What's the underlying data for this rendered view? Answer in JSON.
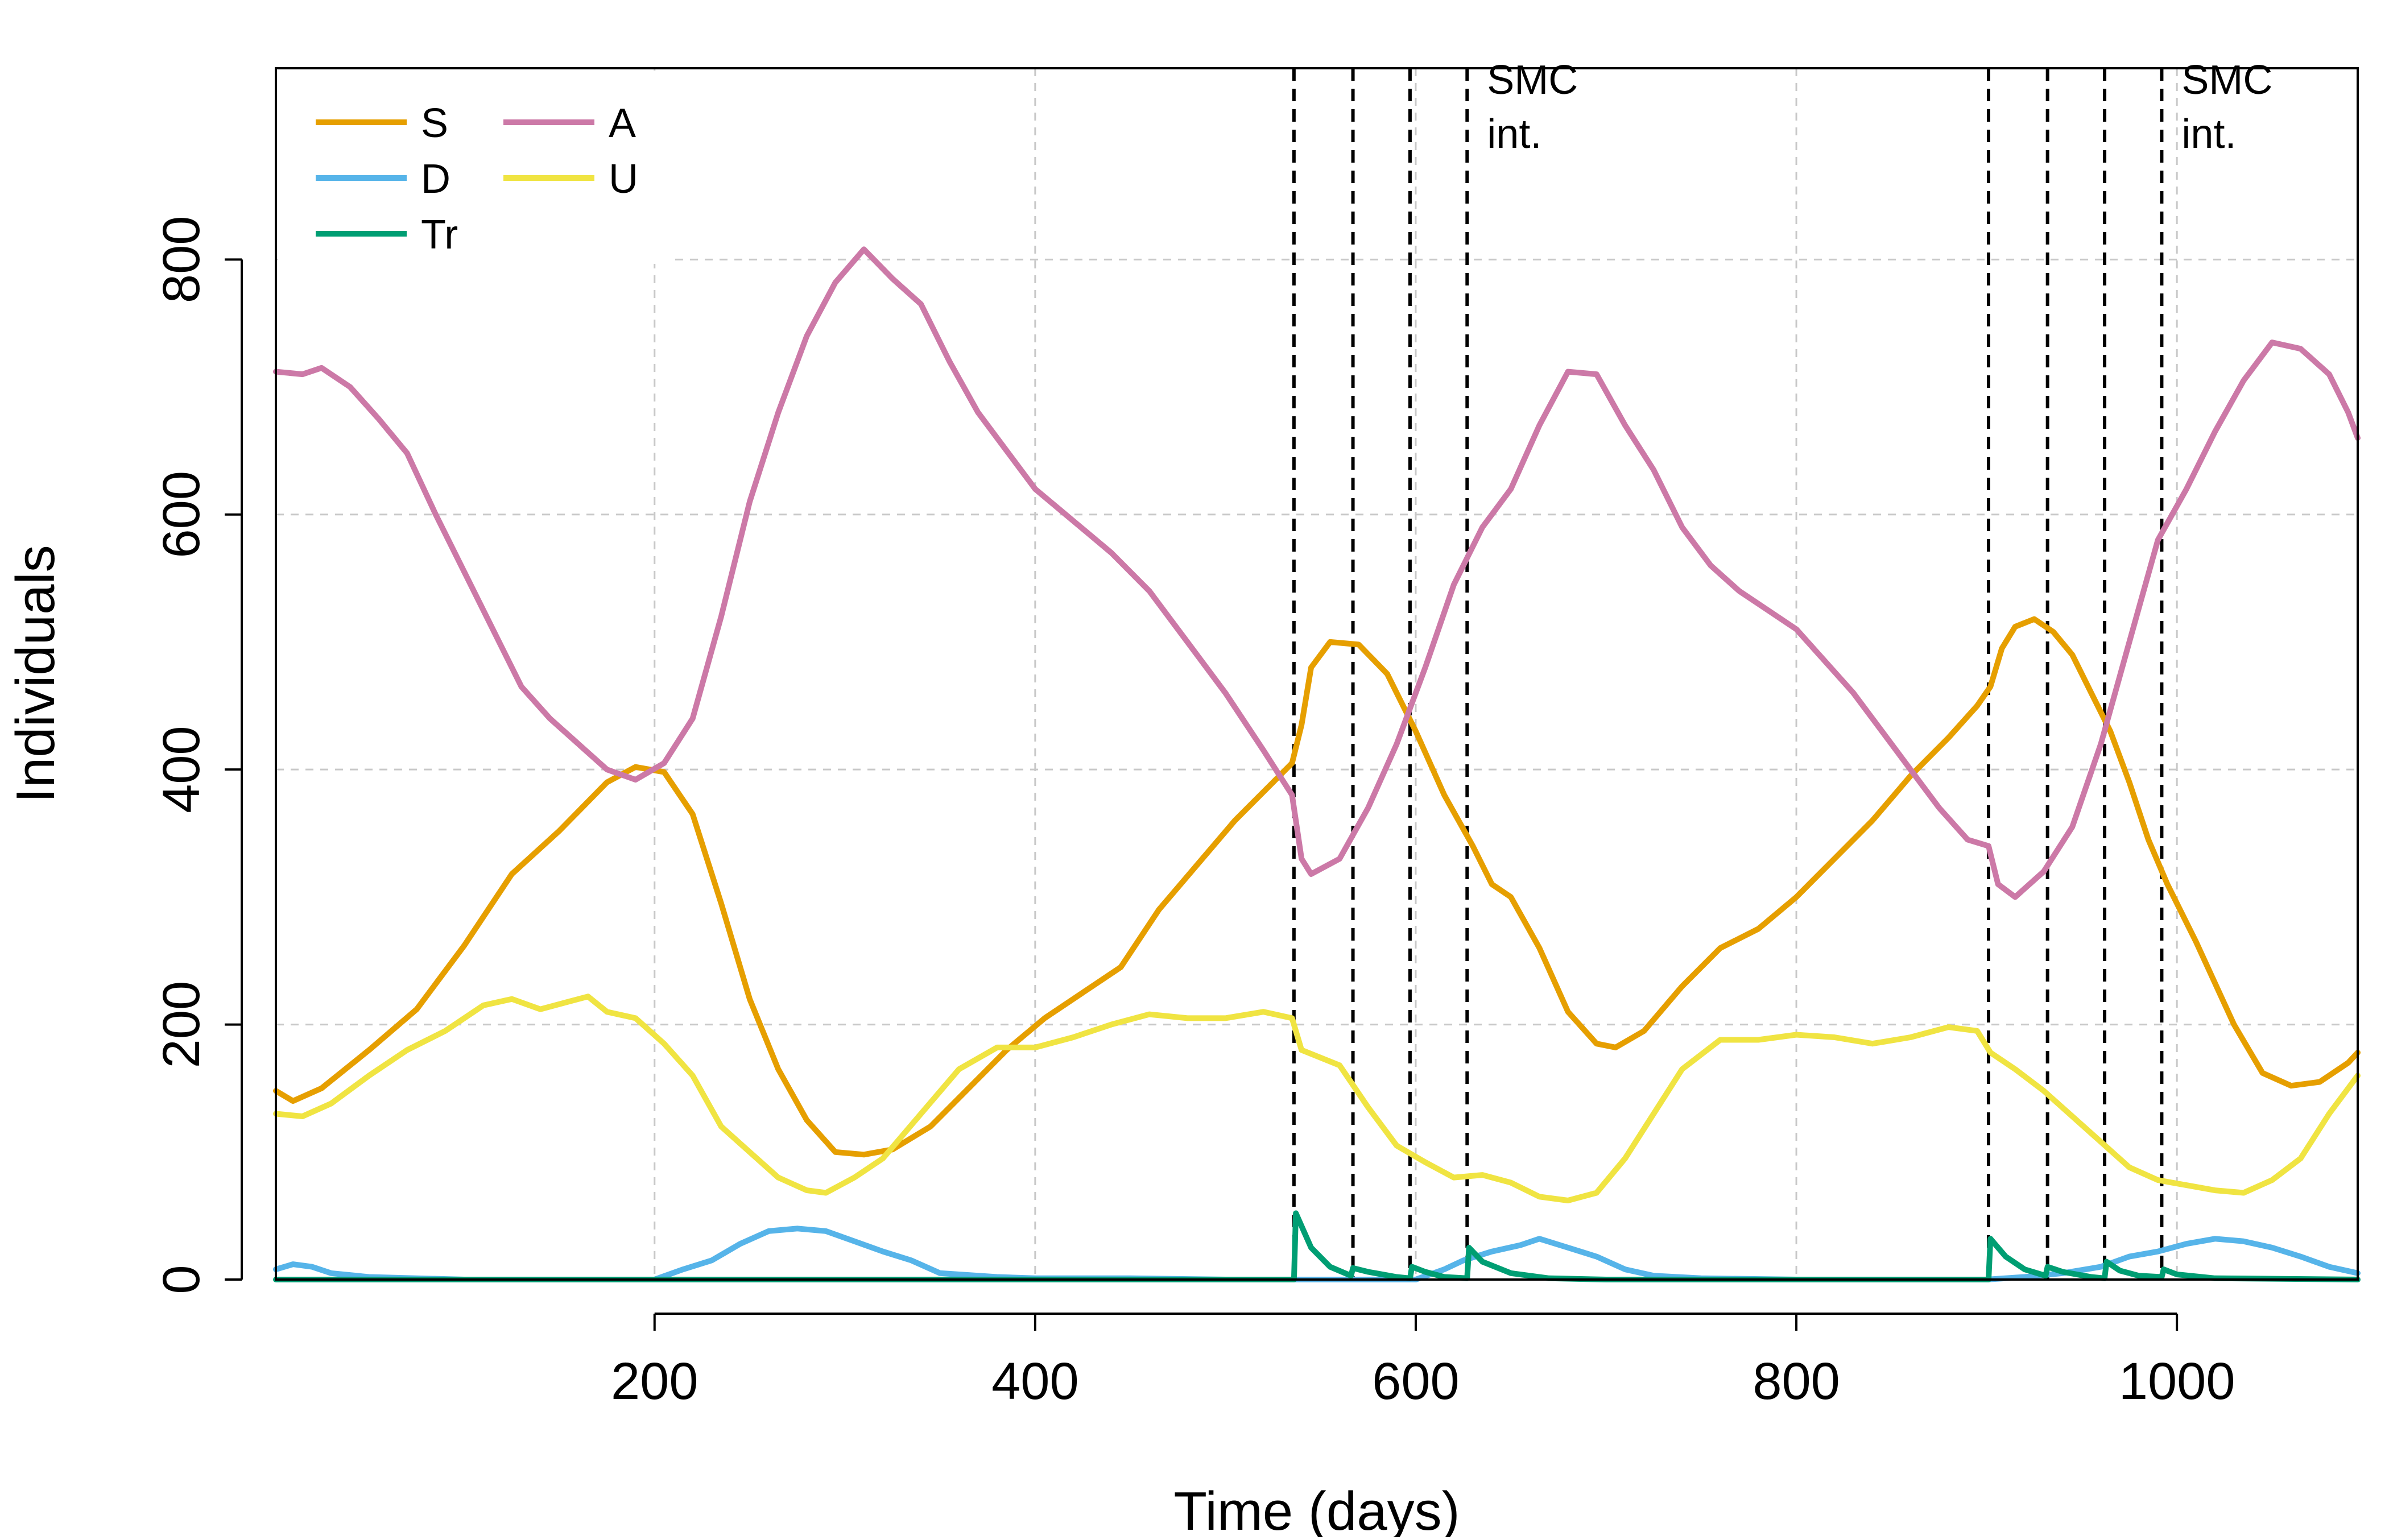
{
  "chart_data": {
    "type": "line",
    "title": "",
    "xlabel": "Time (days)",
    "ylabel": "Individuals",
    "xlim": [
      1,
      1095
    ],
    "ylim": [
      0,
      950
    ],
    "xticks": [
      200,
      400,
      600,
      800,
      1000
    ],
    "yticks": [
      0,
      200,
      400,
      600,
      800
    ],
    "grid": true,
    "legend": {
      "placement": "top-left",
      "columns": 2
    },
    "series": [
      {
        "name": "S",
        "color": "#E69F00",
        "points": [
          [
            1,
            148
          ],
          [
            10,
            140
          ],
          [
            25,
            150
          ],
          [
            50,
            180
          ],
          [
            75,
            212
          ],
          [
            100,
            262
          ],
          [
            125,
            318
          ],
          [
            150,
            352
          ],
          [
            175,
            390
          ],
          [
            190,
            402
          ],
          [
            205,
            398
          ],
          [
            220,
            365
          ],
          [
            235,
            295
          ],
          [
            250,
            220
          ],
          [
            265,
            165
          ],
          [
            280,
            125
          ],
          [
            295,
            100
          ],
          [
            310,
            98
          ],
          [
            325,
            102
          ],
          [
            345,
            120
          ],
          [
            365,
            150
          ],
          [
            385,
            180
          ],
          [
            405,
            205
          ],
          [
            425,
            225
          ],
          [
            445,
            245
          ],
          [
            465,
            290
          ],
          [
            485,
            325
          ],
          [
            505,
            360
          ],
          [
            525,
            390
          ],
          [
            535,
            405
          ],
          [
            540,
            435
          ],
          [
            545,
            480
          ],
          [
            555,
            500
          ],
          [
            570,
            498
          ],
          [
            585,
            475
          ],
          [
            600,
            430
          ],
          [
            615,
            380
          ],
          [
            630,
            340
          ],
          [
            640,
            310
          ],
          [
            650,
            300
          ],
          [
            665,
            260
          ],
          [
            680,
            210
          ],
          [
            695,
            185
          ],
          [
            705,
            182
          ],
          [
            720,
            195
          ],
          [
            740,
            230
          ],
          [
            760,
            260
          ],
          [
            780,
            275
          ],
          [
            800,
            300
          ],
          [
            820,
            330
          ],
          [
            840,
            360
          ],
          [
            860,
            395
          ],
          [
            880,
            425
          ],
          [
            895,
            450
          ],
          [
            902,
            465
          ],
          [
            908,
            495
          ],
          [
            915,
            512
          ],
          [
            925,
            518
          ],
          [
            935,
            508
          ],
          [
            945,
            490
          ],
          [
            955,
            460
          ],
          [
            965,
            430
          ],
          [
            975,
            390
          ],
          [
            985,
            345
          ],
          [
            995,
            310
          ],
          [
            1010,
            265
          ],
          [
            1030,
            200
          ],
          [
            1045,
            162
          ],
          [
            1060,
            152
          ],
          [
            1075,
            155
          ],
          [
            1090,
            170
          ],
          [
            1095,
            178
          ]
        ]
      },
      {
        "name": "D",
        "color": "#56B4E9",
        "points": [
          [
            1,
            8
          ],
          [
            10,
            12
          ],
          [
            20,
            10
          ],
          [
            30,
            5
          ],
          [
            50,
            2
          ],
          [
            100,
            0
          ],
          [
            150,
            0
          ],
          [
            200,
            0
          ],
          [
            215,
            8
          ],
          [
            230,
            15
          ],
          [
            245,
            28
          ],
          [
            260,
            38
          ],
          [
            275,
            40
          ],
          [
            290,
            38
          ],
          [
            305,
            30
          ],
          [
            320,
            22
          ],
          [
            335,
            15
          ],
          [
            350,
            5
          ],
          [
            380,
            2
          ],
          [
            400,
            1
          ],
          [
            450,
            1
          ],
          [
            500,
            0
          ],
          [
            535,
            0
          ],
          [
            560,
            0
          ],
          [
            580,
            0
          ],
          [
            600,
            0
          ],
          [
            615,
            8
          ],
          [
            625,
            15
          ],
          [
            640,
            22
          ],
          [
            655,
            27
          ],
          [
            665,
            32
          ],
          [
            680,
            25
          ],
          [
            695,
            18
          ],
          [
            710,
            8
          ],
          [
            725,
            3
          ],
          [
            750,
            1
          ],
          [
            800,
            0
          ],
          [
            850,
            0
          ],
          [
            900,
            0
          ],
          [
            920,
            2
          ],
          [
            940,
            5
          ],
          [
            960,
            10
          ],
          [
            975,
            18
          ],
          [
            990,
            22
          ],
          [
            1005,
            28
          ],
          [
            1020,
            32
          ],
          [
            1035,
            30
          ],
          [
            1050,
            25
          ],
          [
            1065,
            18
          ],
          [
            1080,
            10
          ],
          [
            1095,
            5
          ]
        ]
      },
      {
        "name": "Tr",
        "color": "#009E73",
        "points": [
          [
            1,
            0
          ],
          [
            200,
            0
          ],
          [
            400,
            0
          ],
          [
            530,
            0
          ],
          [
            536,
            0
          ],
          [
            537,
            52
          ],
          [
            545,
            25
          ],
          [
            555,
            10
          ],
          [
            566,
            3
          ],
          [
            567,
            9
          ],
          [
            575,
            6
          ],
          [
            590,
            2
          ],
          [
            597,
            1
          ],
          [
            598,
            10
          ],
          [
            605,
            6
          ],
          [
            615,
            2
          ],
          [
            627,
            1
          ],
          [
            628,
            25
          ],
          [
            635,
            14
          ],
          [
            650,
            5
          ],
          [
            670,
            1
          ],
          [
            700,
            0
          ],
          [
            850,
            0
          ],
          [
            901,
            0
          ],
          [
            902,
            32
          ],
          [
            910,
            18
          ],
          [
            920,
            8
          ],
          [
            931,
            3
          ],
          [
            932,
            10
          ],
          [
            940,
            6
          ],
          [
            955,
            2
          ],
          [
            962,
            1
          ],
          [
            963,
            14
          ],
          [
            970,
            7
          ],
          [
            980,
            3
          ],
          [
            992,
            2
          ],
          [
            993,
            8
          ],
          [
            1000,
            4
          ],
          [
            1020,
            1
          ],
          [
            1095,
            0
          ]
        ]
      },
      {
        "name": "A",
        "color": "#CC79A7",
        "points": [
          [
            1,
            712
          ],
          [
            15,
            710
          ],
          [
            25,
            715
          ],
          [
            40,
            700
          ],
          [
            55,
            675
          ],
          [
            70,
            648
          ],
          [
            85,
            600
          ],
          [
            100,
            555
          ],
          [
            115,
            510
          ],
          [
            130,
            465
          ],
          [
            145,
            440
          ],
          [
            160,
            420
          ],
          [
            175,
            400
          ],
          [
            190,
            392
          ],
          [
            205,
            405
          ],
          [
            220,
            440
          ],
          [
            235,
            520
          ],
          [
            250,
            610
          ],
          [
            265,
            680
          ],
          [
            280,
            740
          ],
          [
            295,
            782
          ],
          [
            310,
            808
          ],
          [
            325,
            785
          ],
          [
            340,
            765
          ],
          [
            355,
            720
          ],
          [
            370,
            680
          ],
          [
            385,
            650
          ],
          [
            400,
            620
          ],
          [
            420,
            595
          ],
          [
            440,
            570
          ],
          [
            460,
            540
          ],
          [
            480,
            500
          ],
          [
            500,
            460
          ],
          [
            520,
            415
          ],
          [
            535,
            380
          ],
          [
            540,
            330
          ],
          [
            545,
            318
          ],
          [
            560,
            330
          ],
          [
            575,
            370
          ],
          [
            590,
            420
          ],
          [
            605,
            480
          ],
          [
            620,
            545
          ],
          [
            635,
            590
          ],
          [
            650,
            620
          ],
          [
            665,
            670
          ],
          [
            680,
            712
          ],
          [
            695,
            710
          ],
          [
            710,
            670
          ],
          [
            725,
            635
          ],
          [
            740,
            590
          ],
          [
            755,
            560
          ],
          [
            770,
            540
          ],
          [
            785,
            525
          ],
          [
            800,
            510
          ],
          [
            815,
            485
          ],
          [
            830,
            460
          ],
          [
            845,
            430
          ],
          [
            860,
            400
          ],
          [
            875,
            370
          ],
          [
            890,
            345
          ],
          [
            901,
            340
          ],
          [
            906,
            310
          ],
          [
            915,
            300
          ],
          [
            930,
            320
          ],
          [
            945,
            355
          ],
          [
            960,
            420
          ],
          [
            975,
            500
          ],
          [
            990,
            580
          ],
          [
            1005,
            620
          ],
          [
            1020,
            665
          ],
          [
            1035,
            705
          ],
          [
            1050,
            735
          ],
          [
            1065,
            730
          ],
          [
            1080,
            710
          ],
          [
            1090,
            680
          ],
          [
            1095,
            660
          ]
        ]
      },
      {
        "name": "U",
        "color": "#F0E442",
        "points": [
          [
            1,
            130
          ],
          [
            15,
            128
          ],
          [
            30,
            138
          ],
          [
            50,
            160
          ],
          [
            70,
            180
          ],
          [
            90,
            195
          ],
          [
            110,
            215
          ],
          [
            125,
            220
          ],
          [
            140,
            212
          ],
          [
            155,
            218
          ],
          [
            165,
            222
          ],
          [
            175,
            210
          ],
          [
            190,
            205
          ],
          [
            205,
            185
          ],
          [
            220,
            160
          ],
          [
            235,
            120
          ],
          [
            250,
            100
          ],
          [
            265,
            80
          ],
          [
            280,
            70
          ],
          [
            290,
            68
          ],
          [
            305,
            80
          ],
          [
            320,
            95
          ],
          [
            340,
            130
          ],
          [
            360,
            165
          ],
          [
            380,
            182
          ],
          [
            400,
            182
          ],
          [
            420,
            190
          ],
          [
            440,
            200
          ],
          [
            460,
            208
          ],
          [
            480,
            205
          ],
          [
            500,
            205
          ],
          [
            520,
            210
          ],
          [
            535,
            205
          ],
          [
            540,
            180
          ],
          [
            560,
            168
          ],
          [
            575,
            135
          ],
          [
            590,
            105
          ],
          [
            605,
            92
          ],
          [
            620,
            80
          ],
          [
            635,
            82
          ],
          [
            650,
            76
          ],
          [
            665,
            65
          ],
          [
            680,
            62
          ],
          [
            695,
            68
          ],
          [
            710,
            95
          ],
          [
            725,
            130
          ],
          [
            740,
            165
          ],
          [
            760,
            188
          ],
          [
            780,
            188
          ],
          [
            800,
            192
          ],
          [
            820,
            190
          ],
          [
            840,
            185
          ],
          [
            860,
            190
          ],
          [
            880,
            198
          ],
          [
            895,
            195
          ],
          [
            902,
            178
          ],
          [
            915,
            165
          ],
          [
            930,
            148
          ],
          [
            945,
            128
          ],
          [
            960,
            108
          ],
          [
            975,
            88
          ],
          [
            990,
            78
          ],
          [
            1005,
            74
          ],
          [
            1020,
            70
          ],
          [
            1035,
            68
          ],
          [
            1050,
            78
          ],
          [
            1065,
            95
          ],
          [
            1080,
            130
          ],
          [
            1095,
            160
          ]
        ]
      }
    ],
    "vertical_lines": [
      536,
      567,
      597,
      627,
      901,
      932,
      962,
      992
    ],
    "annotations": [
      {
        "x": 627,
        "y": 930,
        "text": "SMC",
        "line2": "int."
      },
      {
        "x": 992,
        "y": 930,
        "text": "SMC",
        "line2": "int."
      }
    ]
  }
}
